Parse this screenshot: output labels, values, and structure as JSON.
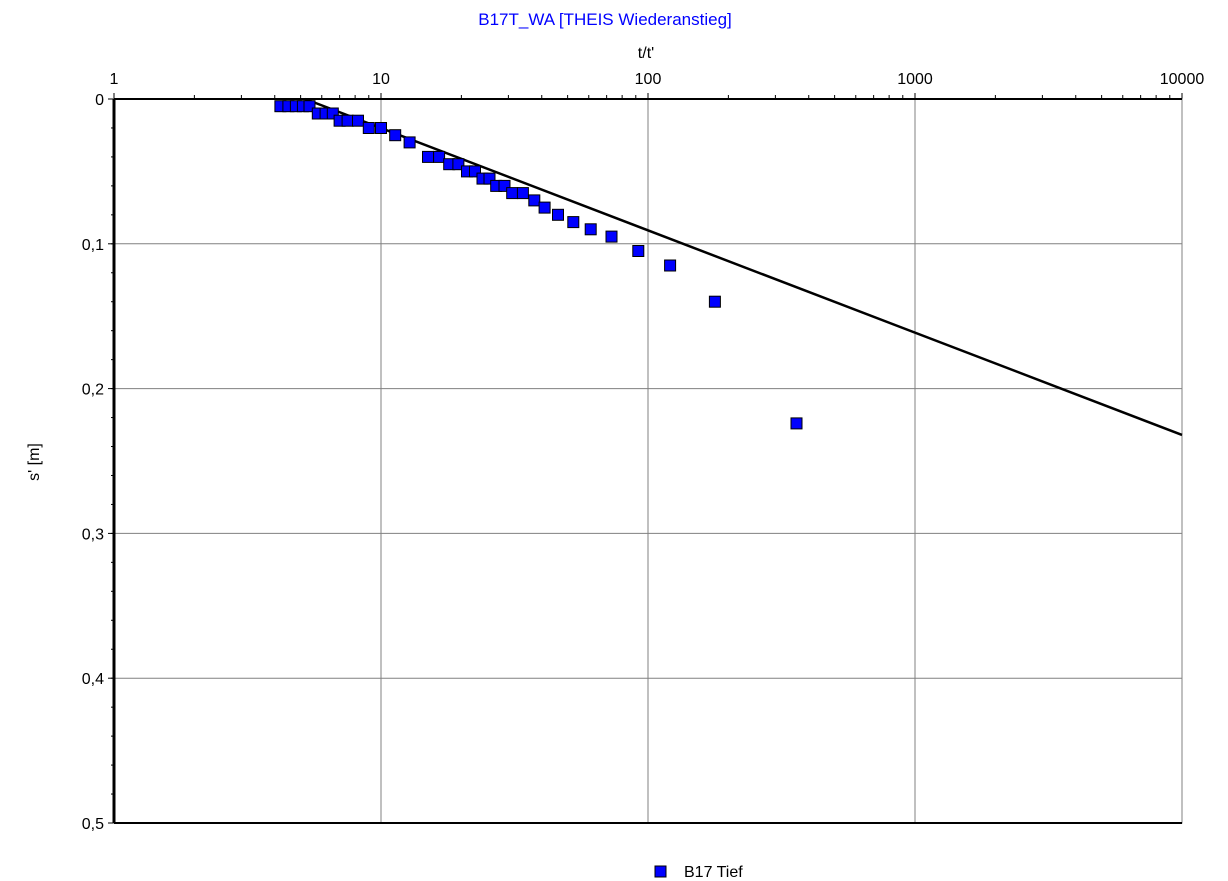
{
  "chart_data": {
    "type": "scatter",
    "title": "B17T_WA [THEIS Wiederanstieg]",
    "title_color": "#0000ff",
    "xlabel": "t/t'",
    "ylabel": "s' [m]",
    "x_scale": "log",
    "x_axis_position": "top",
    "y_axis_inverted": true,
    "xlim": [
      1,
      10000
    ],
    "ylim": [
      0,
      0.5
    ],
    "x_ticks": [
      1,
      10,
      100,
      1000,
      10000
    ],
    "x_tick_labels": [
      "1",
      "10",
      "100",
      "1000",
      "10000"
    ],
    "y_ticks": [
      0,
      0.1,
      0.2,
      0.3,
      0.4,
      0.5
    ],
    "y_tick_labels": [
      "0",
      "0,1",
      "0,2",
      "0,3",
      "0,4",
      "0,5"
    ],
    "grid": true,
    "legend_position": "bottom",
    "series": [
      {
        "name": "B17 Tief",
        "marker": "square",
        "color": "#0000ff",
        "points": [
          {
            "x": 4.2,
            "y": 0.005
          },
          {
            "x": 4.5,
            "y": 0.005
          },
          {
            "x": 4.8,
            "y": 0.005
          },
          {
            "x": 5.1,
            "y": 0.005
          },
          {
            "x": 5.4,
            "y": 0.005
          },
          {
            "x": 5.8,
            "y": 0.01
          },
          {
            "x": 6.2,
            "y": 0.01
          },
          {
            "x": 6.6,
            "y": 0.01
          },
          {
            "x": 7.0,
            "y": 0.015
          },
          {
            "x": 7.5,
            "y": 0.015
          },
          {
            "x": 8.2,
            "y": 0.015
          },
          {
            "x": 9.0,
            "y": 0.02
          },
          {
            "x": 10.0,
            "y": 0.02
          },
          {
            "x": 11.3,
            "y": 0.025
          },
          {
            "x": 12.8,
            "y": 0.03
          },
          {
            "x": 15.0,
            "y": 0.04
          },
          {
            "x": 16.5,
            "y": 0.04
          },
          {
            "x": 18.0,
            "y": 0.045
          },
          {
            "x": 19.5,
            "y": 0.045
          },
          {
            "x": 21.0,
            "y": 0.05
          },
          {
            "x": 22.5,
            "y": 0.05
          },
          {
            "x": 24.0,
            "y": 0.055
          },
          {
            "x": 25.5,
            "y": 0.055
          },
          {
            "x": 27.0,
            "y": 0.06
          },
          {
            "x": 29.0,
            "y": 0.06
          },
          {
            "x": 31.0,
            "y": 0.065
          },
          {
            "x": 34.0,
            "y": 0.065
          },
          {
            "x": 37.5,
            "y": 0.07
          },
          {
            "x": 41.0,
            "y": 0.075
          },
          {
            "x": 46.0,
            "y": 0.08
          },
          {
            "x": 52.5,
            "y": 0.085
          },
          {
            "x": 61.0,
            "y": 0.09
          },
          {
            "x": 73.0,
            "y": 0.095
          },
          {
            "x": 92.0,
            "y": 0.105
          },
          {
            "x": 121.0,
            "y": 0.115
          },
          {
            "x": 178.0,
            "y": 0.14
          },
          {
            "x": 360.0,
            "y": 0.224
          }
        ]
      }
    ],
    "fit_line": {
      "color": "#000000",
      "points": [
        {
          "x": 5.2,
          "y": 0.0
        },
        {
          "x": 10000,
          "y": 0.232
        }
      ]
    }
  }
}
